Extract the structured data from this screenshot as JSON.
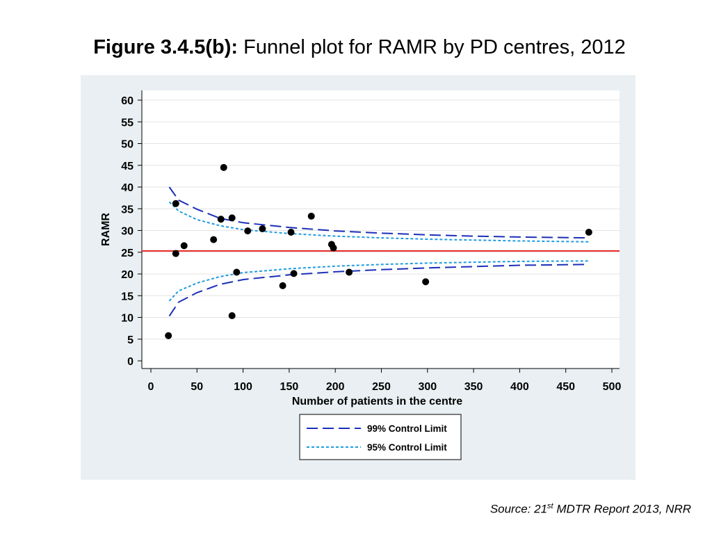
{
  "title": {
    "prefix": "Figure 3.4.5(b):",
    "text": " Funnel plot for RAMR by PD centres,  2012"
  },
  "source": {
    "prefix": "Source: 21",
    "superscript": "st",
    "suffix": " MDTR Report 2013, NRR"
  },
  "colors": {
    "panel_background": "#e9eff2",
    "plot_background": "#ffffff",
    "mean_line": "#e8231f",
    "limit_99": "#1a2fb8",
    "limit_95": "#1e9be0",
    "points": "#000000"
  },
  "chart_data": {
    "type": "scatter",
    "title": "",
    "xlabel": "Number of patients in the centre",
    "ylabel": "RAMR",
    "xlim": [
      0,
      500
    ],
    "ylim": [
      0,
      60
    ],
    "x_ticks": [
      0,
      50,
      100,
      150,
      200,
      250,
      300,
      350,
      400,
      450,
      500
    ],
    "y_ticks": [
      0,
      5,
      10,
      15,
      20,
      25,
      30,
      35,
      40,
      45,
      50,
      55,
      60
    ],
    "grid": "horizontal",
    "mean_value": 25.3,
    "points": [
      {
        "x": 19,
        "y": 5.8
      },
      {
        "x": 27,
        "y": 24.7
      },
      {
        "x": 27,
        "y": 36.2
      },
      {
        "x": 36,
        "y": 26.5
      },
      {
        "x": 68,
        "y": 27.9
      },
      {
        "x": 76,
        "y": 32.6
      },
      {
        "x": 79,
        "y": 44.5
      },
      {
        "x": 88,
        "y": 10.4
      },
      {
        "x": 88,
        "y": 32.9
      },
      {
        "x": 93,
        "y": 20.4
      },
      {
        "x": 105,
        "y": 29.9
      },
      {
        "x": 121,
        "y": 30.4
      },
      {
        "x": 143,
        "y": 17.3
      },
      {
        "x": 152,
        "y": 29.6
      },
      {
        "x": 155,
        "y": 20.1
      },
      {
        "x": 174,
        "y": 33.3
      },
      {
        "x": 196,
        "y": 26.8
      },
      {
        "x": 198,
        "y": 26.0
      },
      {
        "x": 215,
        "y": 20.4
      },
      {
        "x": 298,
        "y": 18.2
      },
      {
        "x": 475,
        "y": 29.6
      }
    ],
    "series": [
      {
        "name": "99% Control Limit",
        "style": "long-dash",
        "upper": [
          [
            20,
            40.0
          ],
          [
            30,
            37.0
          ],
          [
            50,
            34.9
          ],
          [
            75,
            32.8
          ],
          [
            100,
            31.8
          ],
          [
            150,
            30.7
          ],
          [
            200,
            29.9
          ],
          [
            250,
            29.4
          ],
          [
            300,
            29.0
          ],
          [
            350,
            28.7
          ],
          [
            400,
            28.5
          ],
          [
            475,
            28.3
          ]
        ],
        "lower": [
          [
            20,
            10.3
          ],
          [
            30,
            13.5
          ],
          [
            50,
            15.7
          ],
          [
            75,
            17.6
          ],
          [
            100,
            18.7
          ],
          [
            150,
            19.8
          ],
          [
            200,
            20.5
          ],
          [
            250,
            21.0
          ],
          [
            300,
            21.4
          ],
          [
            350,
            21.7
          ],
          [
            400,
            22.0
          ],
          [
            475,
            22.2
          ]
        ]
      },
      {
        "name": "95% Control Limit",
        "style": "short-dash",
        "upper": [
          [
            20,
            36.6
          ],
          [
            30,
            34.5
          ],
          [
            50,
            32.5
          ],
          [
            75,
            31.1
          ],
          [
            100,
            30.2
          ],
          [
            150,
            29.3
          ],
          [
            200,
            28.7
          ],
          [
            250,
            28.3
          ],
          [
            300,
            28.0
          ],
          [
            350,
            27.8
          ],
          [
            400,
            27.6
          ],
          [
            475,
            27.4
          ]
        ],
        "lower": [
          [
            20,
            13.8
          ],
          [
            30,
            16.1
          ],
          [
            50,
            17.9
          ],
          [
            75,
            19.4
          ],
          [
            100,
            20.3
          ],
          [
            150,
            21.2
          ],
          [
            200,
            21.8
          ],
          [
            250,
            22.2
          ],
          [
            300,
            22.5
          ],
          [
            350,
            22.7
          ],
          [
            400,
            22.9
          ],
          [
            475,
            23.0
          ]
        ]
      }
    ],
    "legend": {
      "position": "bottom-center",
      "entries": [
        "99% Control Limit",
        "95% Control Limit"
      ]
    }
  }
}
